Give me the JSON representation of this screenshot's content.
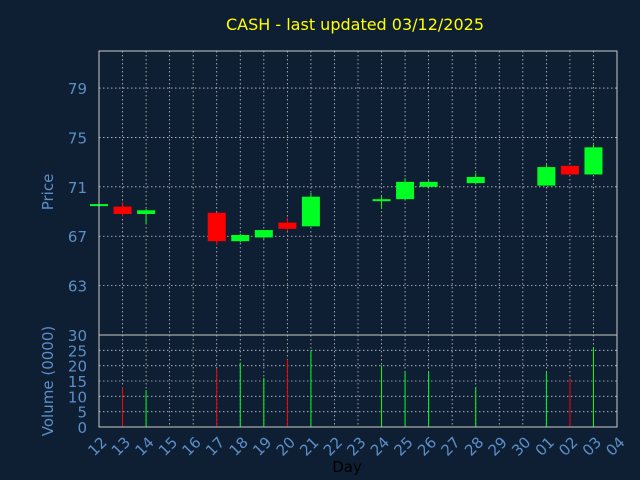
{
  "chart_data": {
    "type": "candlestick",
    "title": "CASH - last updated 03/12/2025",
    "xlabel": "Day",
    "x_ticks": [
      "12",
      "13",
      "14",
      "15",
      "16",
      "17",
      "18",
      "19",
      "20",
      "21",
      "22",
      "23",
      "24",
      "25",
      "26",
      "27",
      "28",
      "29",
      "30",
      "01",
      "02",
      "03",
      "04"
    ],
    "price": {
      "ylabel": "Price",
      "yticks": [
        63,
        67,
        71,
        75,
        79
      ],
      "ylim": [
        59.0,
        82.0
      ],
      "candles": [
        {
          "x": 0,
          "open": 69.5,
          "high": 69.6,
          "low": 69.4,
          "close": 69.6
        },
        {
          "x": 1,
          "open": 69.4,
          "high": 69.8,
          "low": 68.6,
          "close": 68.8
        },
        {
          "x": 2,
          "open": 68.8,
          "high": 69.2,
          "low": 68.0,
          "close": 69.1
        },
        {
          "x": 5,
          "open": 68.9,
          "high": 68.9,
          "low": 66.3,
          "close": 66.6
        },
        {
          "x": 6,
          "open": 66.6,
          "high": 67.2,
          "low": 66.5,
          "close": 67.1
        },
        {
          "x": 7,
          "open": 66.9,
          "high": 67.5,
          "low": 66.8,
          "close": 67.5
        },
        {
          "x": 8,
          "open": 68.1,
          "high": 68.5,
          "low": 67.4,
          "close": 67.6
        },
        {
          "x": 9,
          "open": 67.8,
          "high": 70.5,
          "low": 67.8,
          "close": 70.2
        },
        {
          "x": 12,
          "open": 69.9,
          "high": 70.3,
          "low": 69.2,
          "close": 70.0
        },
        {
          "x": 13,
          "open": 70.0,
          "high": 71.7,
          "low": 70.0,
          "close": 71.4
        },
        {
          "x": 14,
          "open": 71.0,
          "high": 71.5,
          "low": 71.0,
          "close": 71.4
        },
        {
          "x": 16,
          "open": 71.3,
          "high": 72.1,
          "low": 71.3,
          "close": 71.8
        },
        {
          "x": 19,
          "open": 71.1,
          "high": 72.8,
          "low": 71.1,
          "close": 72.6
        },
        {
          "x": 20,
          "open": 72.7,
          "high": 72.7,
          "low": 72.0,
          "close": 72.0
        },
        {
          "x": 21,
          "open": 72.0,
          "high": 74.4,
          "low": 72.0,
          "close": 74.2
        }
      ]
    },
    "volume": {
      "ylabel": "Volume (0000)",
      "yticks": [
        0,
        5,
        10,
        15,
        20,
        25,
        30
      ],
      "ylim": [
        0,
        30
      ],
      "bars": [
        {
          "x": 1,
          "value": 13,
          "dir": "down"
        },
        {
          "x": 2,
          "value": 12,
          "dir": "up"
        },
        {
          "x": 5,
          "value": 19,
          "dir": "down"
        },
        {
          "x": 6,
          "value": 21,
          "dir": "up"
        },
        {
          "x": 7,
          "value": 16,
          "dir": "up"
        },
        {
          "x": 8,
          "value": 22,
          "dir": "down"
        },
        {
          "x": 9,
          "value": 25,
          "dir": "up"
        },
        {
          "x": 12,
          "value": 20,
          "dir": "up"
        },
        {
          "x": 13,
          "value": 18,
          "dir": "up"
        },
        {
          "x": 14,
          "value": 18,
          "dir": "up"
        },
        {
          "x": 16,
          "value": 13,
          "dir": "up"
        },
        {
          "x": 19,
          "value": 18,
          "dir": "up"
        },
        {
          "x": 20,
          "value": 16,
          "dir": "down"
        },
        {
          "x": 21,
          "value": 26,
          "dir": "up"
        }
      ]
    },
    "colors": {
      "background": "#0f1f33",
      "title": "#ffff00",
      "axis_text": "#5b8fc9",
      "frame": "#c8c8c8",
      "grid": "#c8c8c8",
      "up": "#00ff22",
      "down": "#ff0000",
      "day_label": "#000000"
    },
    "grid": true
  }
}
